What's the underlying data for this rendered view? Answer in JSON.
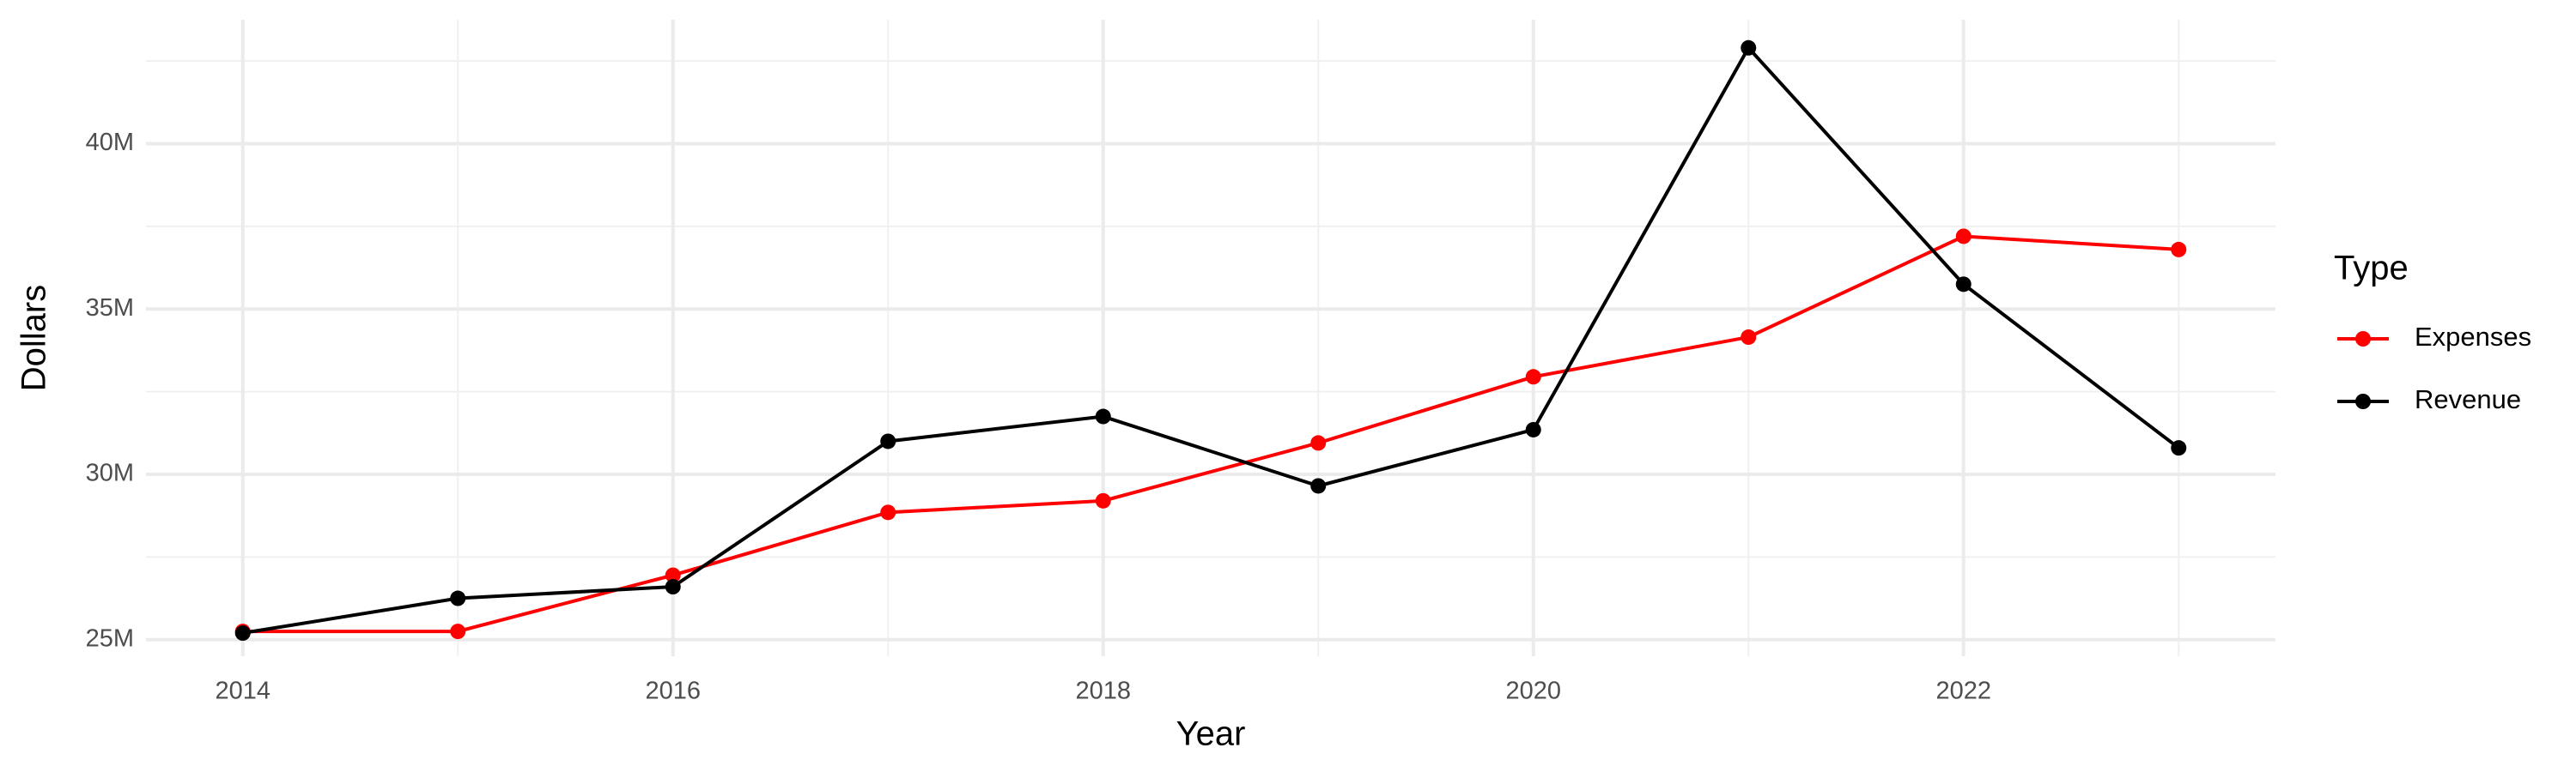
{
  "chart_data": {
    "type": "line",
    "x_label": "Year",
    "y_label": "Dollars",
    "legend_title": "Type",
    "x": [
      2014,
      2015,
      2016,
      2017,
      2018,
      2019,
      2020,
      2021,
      2022,
      2023
    ],
    "series": [
      {
        "name": "Expenses",
        "color": "#ff0000",
        "values": [
          25250000,
          25250000,
          26950000,
          28850000,
          29200000,
          30950000,
          32950000,
          34150000,
          37200000,
          36800000
        ]
      },
      {
        "name": "Revenue",
        "color": "#000000",
        "values": [
          25200000,
          26250000,
          26600000,
          31000000,
          31750000,
          29650000,
          31350000,
          42900000,
          35750000,
          30800000
        ]
      }
    ],
    "xlim": [
      2013.55,
      2023.45
    ],
    "xticks": [
      2014,
      2016,
      2018,
      2020,
      2022
    ],
    "ylim": [
      24500000,
      43750000
    ],
    "yticks": [
      {
        "value": 25000000,
        "label": "25M"
      },
      {
        "value": 30000000,
        "label": "30M"
      },
      {
        "value": 35000000,
        "label": "35M"
      },
      {
        "value": 40000000,
        "label": "40M"
      }
    ],
    "grid": true,
    "legend": "right"
  }
}
